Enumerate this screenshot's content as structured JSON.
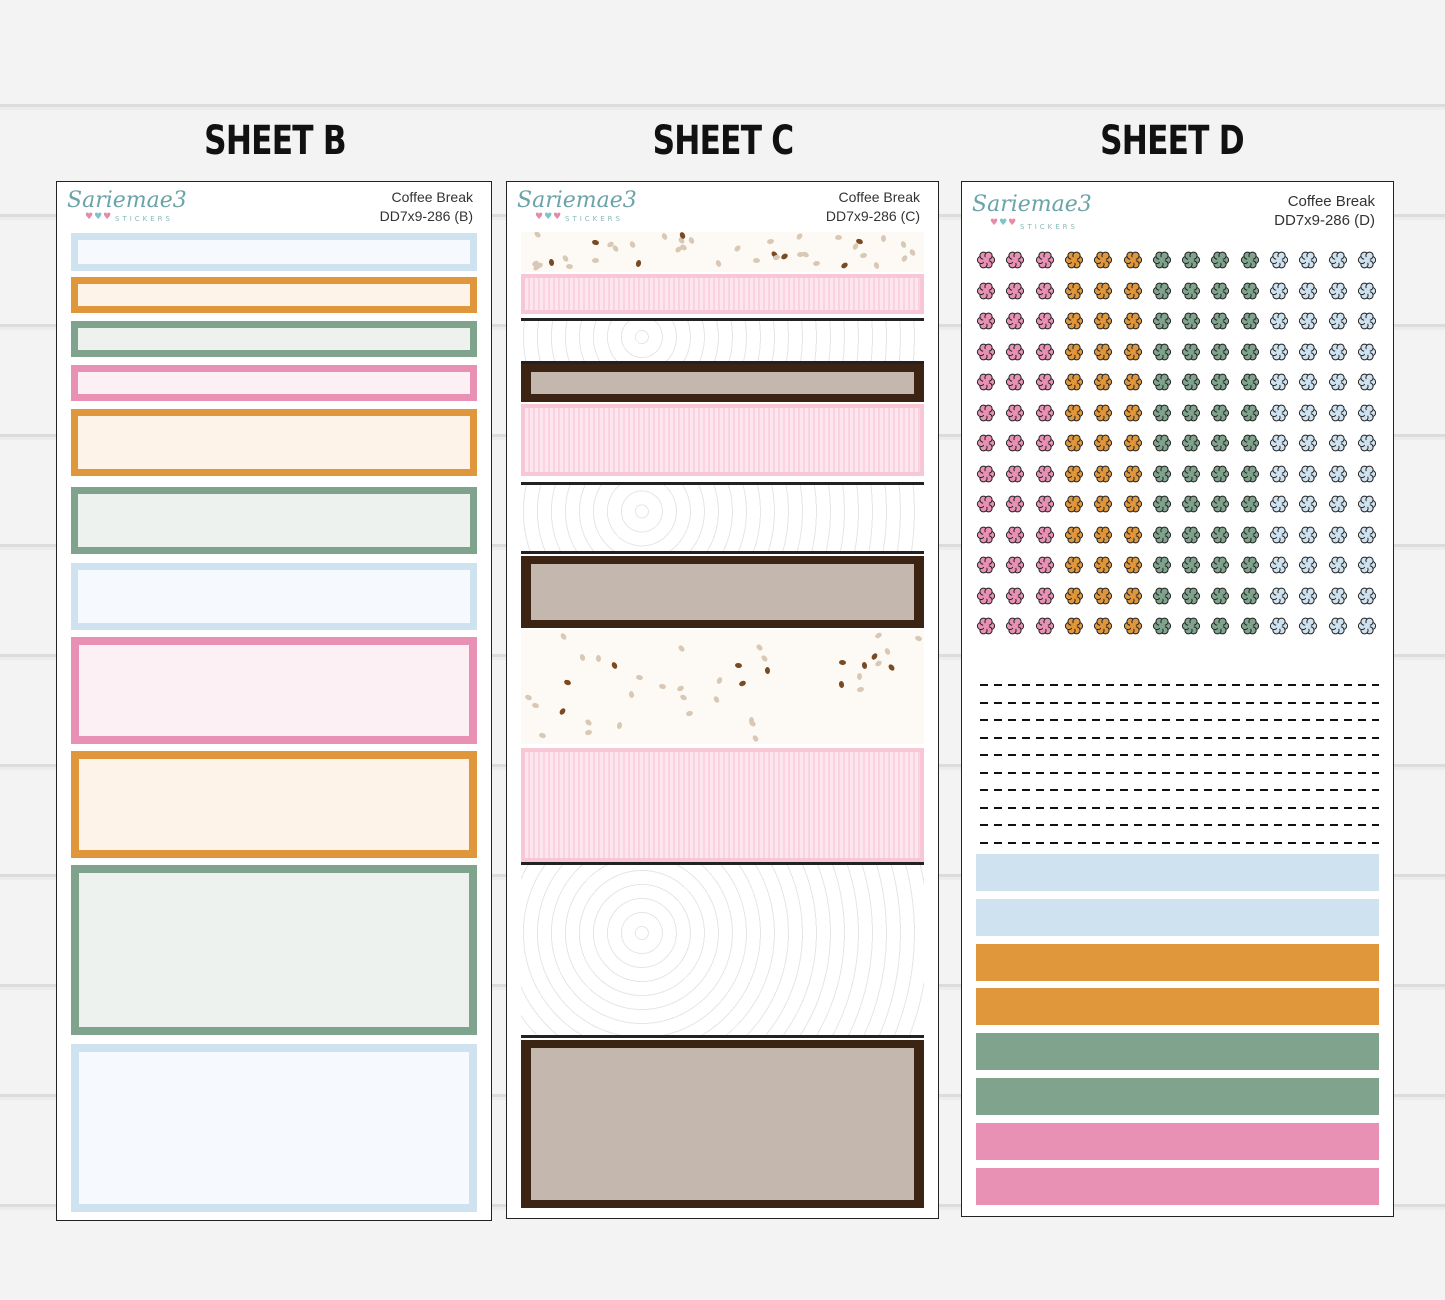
{
  "sheet_titles": [
    "SHEET B",
    "SHEET C",
    "SHEET D"
  ],
  "brand": {
    "name": "Sariemae3",
    "sub": "STICKERS",
    "hearts": "♥♥♥"
  },
  "sheets": [
    {
      "product": "Coffee Break",
      "code": "DD7x9-286 (B)"
    },
    {
      "product": "Coffee Break",
      "code": "DD7x9-286 (C)"
    },
    {
      "product": "Coffee Break",
      "code": "DD7x9-286 (D)"
    }
  ],
  "colors": {
    "blue": "#cfe2ef",
    "blue_fill": "#f6f9fd",
    "orange": "#e0963a",
    "orange_fill": "#fdf3e9",
    "green": "#7fa38c",
    "green_fill": "#eef2ee",
    "pink": "#e991b4",
    "pink_fill": "#fdf0f4",
    "coffee_dark": "#3b2414",
    "stripe_pink": "#f7c7d6"
  },
  "sheet_b_boxes": [
    "blue",
    "orange",
    "green",
    "pink",
    "orange",
    "green",
    "blue",
    "pink",
    "orange",
    "green",
    "blue"
  ],
  "sheet_c_strips": [
    "beans",
    "pink-stripe",
    "doodle",
    "coffee-dark",
    "pink-stripe",
    "doodle",
    "coffee-dark",
    "beans",
    "pink-stripe",
    "doodle",
    "coffee-dark"
  ],
  "sheet_d_flower_colors": [
    "pink",
    "pink",
    "pink",
    "orange",
    "orange",
    "orange",
    "green",
    "green",
    "green",
    "green",
    "blue",
    "blue",
    "blue",
    "blue"
  ],
  "sheet_d_bars": [
    "blue",
    "blue",
    "orange",
    "orange",
    "green",
    "green",
    "pink",
    "pink"
  ],
  "icons": [
    "flower-icon",
    "coffee-bean-icon",
    "heart-icon"
  ]
}
